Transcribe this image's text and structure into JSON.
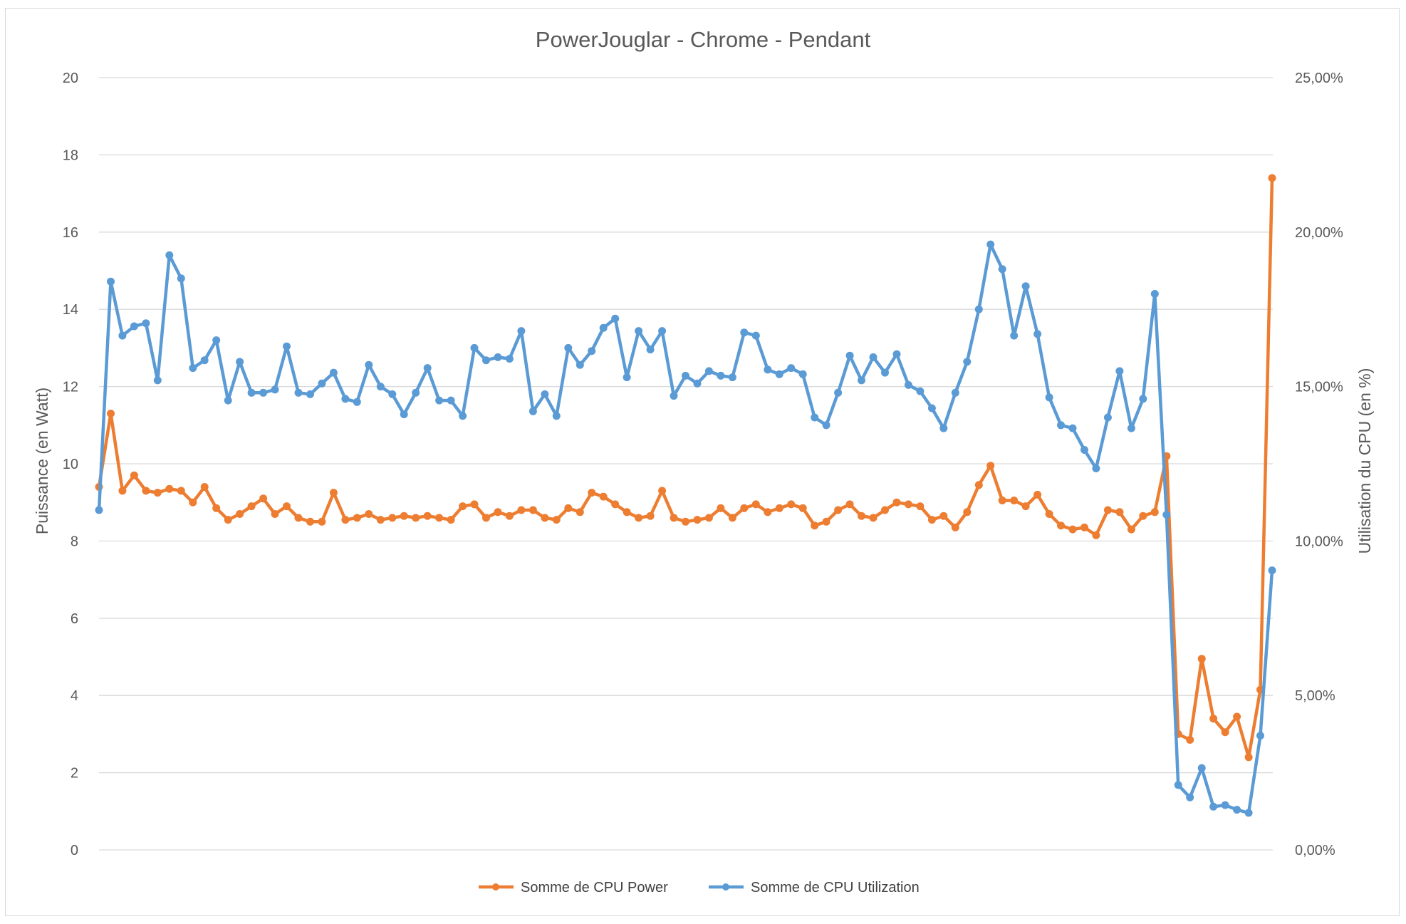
{
  "chart_data": {
    "type": "line",
    "title": "PowerJouglar - Chrome - Pendant",
    "xlabel": "",
    "ylabel": "Puissance (en Watt)",
    "y2label": "Utilisation du CPU (en %)",
    "ylim": [
      0,
      20
    ],
    "y2lim": [
      0,
      25
    ],
    "yticks": [
      "0",
      "2",
      "4",
      "6",
      "8",
      "10",
      "12",
      "14",
      "16",
      "18",
      "20"
    ],
    "y2ticks": [
      "0,00%",
      "5,00%",
      "10,00%",
      "15,00%",
      "20,00%",
      "25,00%"
    ],
    "grid": true,
    "legend_position": "bottom",
    "series": [
      {
        "name": "Somme de CPU Power",
        "axis": "left",
        "color": "#ED7D31",
        "values": [
          9.4,
          11.3,
          9.3,
          9.7,
          9.3,
          9.25,
          9.35,
          9.3,
          9.0,
          9.4,
          8.85,
          8.55,
          8.7,
          8.9,
          9.1,
          8.7,
          8.9,
          8.6,
          8.5,
          8.5,
          9.25,
          8.55,
          8.6,
          8.7,
          8.55,
          8.6,
          8.65,
          8.6,
          8.65,
          8.6,
          8.55,
          8.9,
          8.95,
          8.6,
          8.75,
          8.65,
          8.8,
          8.8,
          8.6,
          8.55,
          8.85,
          8.75,
          9.25,
          9.15,
          8.95,
          8.75,
          8.6,
          8.65,
          9.3,
          8.6,
          8.5,
          8.55,
          8.6,
          8.85,
          8.6,
          8.85,
          8.95,
          8.75,
          8.85,
          8.95,
          8.85,
          8.4,
          8.5,
          8.8,
          8.95,
          8.65,
          8.6,
          8.8,
          9.0,
          8.95,
          8.9,
          8.55,
          8.65,
          8.35,
          8.75,
          9.45,
          9.95,
          9.05,
          9.05,
          8.9,
          9.2,
          8.7,
          8.4,
          8.3,
          8.35,
          8.15,
          8.8,
          8.75,
          8.3,
          8.65,
          8.75,
          10.2,
          3.0,
          2.85,
          4.95,
          3.4,
          3.05,
          3.45,
          2.4,
          4.15,
          17.4
        ]
      },
      {
        "name": "Somme de CPU Utilization",
        "axis": "right",
        "color": "#5B9BD5",
        "values": [
          11.0,
          18.4,
          16.65,
          16.95,
          17.05,
          15.2,
          19.25,
          18.5,
          15.6,
          15.85,
          16.5,
          14.55,
          15.8,
          14.8,
          14.8,
          14.9,
          16.3,
          14.8,
          14.75,
          15.1,
          15.45,
          14.6,
          14.5,
          15.7,
          15.0,
          14.75,
          14.1,
          14.8,
          15.6,
          14.55,
          14.55,
          14.05,
          16.25,
          15.85,
          15.95,
          15.9,
          16.8,
          14.2,
          14.75,
          14.05,
          16.25,
          15.7,
          16.15,
          16.9,
          17.2,
          15.3,
          16.8,
          16.2,
          16.8,
          14.7,
          15.35,
          15.1,
          15.5,
          15.35,
          15.3,
          16.75,
          16.65,
          15.55,
          15.4,
          15.6,
          15.4,
          14.0,
          13.75,
          14.8,
          16.0,
          15.2,
          15.95,
          15.45,
          16.05,
          15.05,
          14.85,
          14.3,
          13.65,
          14.8,
          15.8,
          17.5,
          19.6,
          18.8,
          16.65,
          18.25,
          16.7,
          14.65,
          13.75,
          13.65,
          12.95,
          12.35,
          14.0,
          15.5,
          13.65,
          14.6,
          18.0,
          10.85,
          2.1,
          1.7,
          2.65,
          1.4,
          1.45,
          1.3,
          1.2,
          3.7,
          9.05
        ]
      }
    ]
  }
}
